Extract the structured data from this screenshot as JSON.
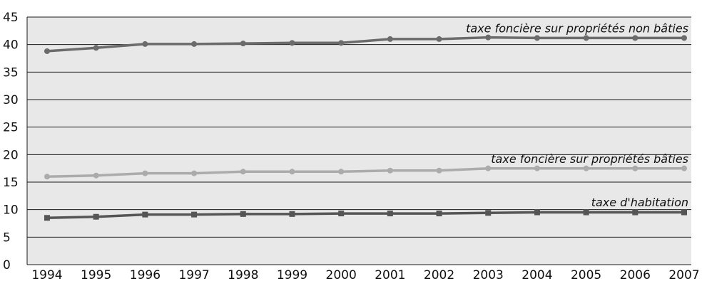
{
  "chart_data": {
    "type": "line",
    "title": "",
    "xlabel": "",
    "ylabel": "",
    "x": [
      "1994",
      "1995",
      "1996",
      "1997",
      "1998",
      "1999",
      "2000",
      "2001",
      "2002",
      "2003",
      "2004",
      "2005",
      "2006",
      "2007"
    ],
    "ylim": [
      0,
      45
    ],
    "yticks": [
      0,
      5,
      10,
      15,
      20,
      25,
      30,
      35,
      40,
      45
    ],
    "grid": "horizontal",
    "plot_background": "#e8e8e8",
    "series": [
      {
        "name": "taxe foncière sur propriétés non bâties",
        "color": "#6b6b6b",
        "marker": "circle",
        "values": [
          38.8,
          39.4,
          40.1,
          40.1,
          40.2,
          40.3,
          40.3,
          41.0,
          41.0,
          41.3,
          41.2,
          41.2,
          41.2,
          41.2
        ]
      },
      {
        "name": "taxe foncière sur propriétés bâties",
        "color": "#ababab",
        "marker": "circle",
        "values": [
          16.0,
          16.2,
          16.6,
          16.6,
          16.9,
          16.9,
          16.9,
          17.1,
          17.1,
          17.5,
          17.5,
          17.5,
          17.5,
          17.5
        ]
      },
      {
        "name": "taxe d'habitation",
        "color": "#555555",
        "marker": "square",
        "values": [
          8.5,
          8.7,
          9.1,
          9.1,
          9.2,
          9.2,
          9.3,
          9.3,
          9.3,
          9.4,
          9.5,
          9.5,
          9.5,
          9.5
        ]
      }
    ]
  }
}
